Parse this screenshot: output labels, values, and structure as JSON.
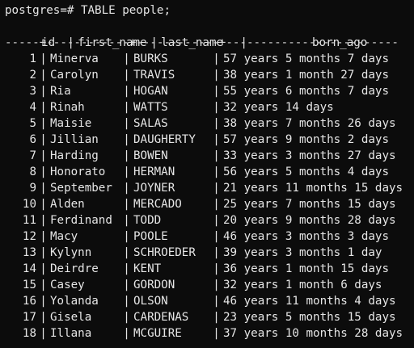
{
  "prompt": "postgres=# TABLE people;",
  "headers": {
    "id": "id",
    "first_name": "first_name",
    "last_name": "last_name",
    "born_ago": "born_ago"
  },
  "separator": "-----+------------+------------+-------------------------",
  "rows": [
    {
      "id": "1",
      "first_name": "Minerva",
      "last_name": "BURKS",
      "born_ago": "57 years 5 months 7 days"
    },
    {
      "id": "2",
      "first_name": "Carolyn",
      "last_name": "TRAVIS",
      "born_ago": "38 years 1 month 27 days"
    },
    {
      "id": "3",
      "first_name": "Ria",
      "last_name": "HOGAN",
      "born_ago": "55 years 6 months 7 days"
    },
    {
      "id": "4",
      "first_name": "Rinah",
      "last_name": "WATTS",
      "born_ago": "32 years 14 days"
    },
    {
      "id": "5",
      "first_name": "Maisie",
      "last_name": "SALAS",
      "born_ago": "38 years 7 months 26 days"
    },
    {
      "id": "6",
      "first_name": "Jillian",
      "last_name": "DAUGHERTY",
      "born_ago": "57 years 9 months 2 days"
    },
    {
      "id": "7",
      "first_name": "Harding",
      "last_name": "BOWEN",
      "born_ago": "33 years 3 months 27 days"
    },
    {
      "id": "8",
      "first_name": "Honorato",
      "last_name": "HERMAN",
      "born_ago": "56 years 5 months 4 days"
    },
    {
      "id": "9",
      "first_name": "September",
      "last_name": "JOYNER",
      "born_ago": "21 years 11 months 15 days"
    },
    {
      "id": "10",
      "first_name": "Alden",
      "last_name": "MERCADO",
      "born_ago": "25 years 7 months 15 days"
    },
    {
      "id": "11",
      "first_name": "Ferdinand",
      "last_name": "TODD",
      "born_ago": "20 years 9 months 28 days"
    },
    {
      "id": "12",
      "first_name": "Macy",
      "last_name": "POOLE",
      "born_ago": "46 years 3 months 3 days"
    },
    {
      "id": "13",
      "first_name": "Kylynn",
      "last_name": "SCHROEDER",
      "born_ago": "39 years 3 months 1 day"
    },
    {
      "id": "14",
      "first_name": "Deirdre",
      "last_name": "KENT",
      "born_ago": "36 years 1 month 15 days"
    },
    {
      "id": "15",
      "first_name": "Casey",
      "last_name": "GORDON",
      "born_ago": "32 years 1 month 6 days"
    },
    {
      "id": "16",
      "first_name": "Yolanda",
      "last_name": "OLSON",
      "born_ago": "46 years 11 months 4 days"
    },
    {
      "id": "17",
      "first_name": "Gisela",
      "last_name": "CARDENAS",
      "born_ago": "23 years 5 months 15 days"
    },
    {
      "id": "18",
      "first_name": "Illana",
      "last_name": "MCGUIRE",
      "born_ago": "37 years 10 months 28 days"
    }
  ],
  "colors": {
    "background": "#0c0c0c",
    "text": "#e6e6e6"
  }
}
